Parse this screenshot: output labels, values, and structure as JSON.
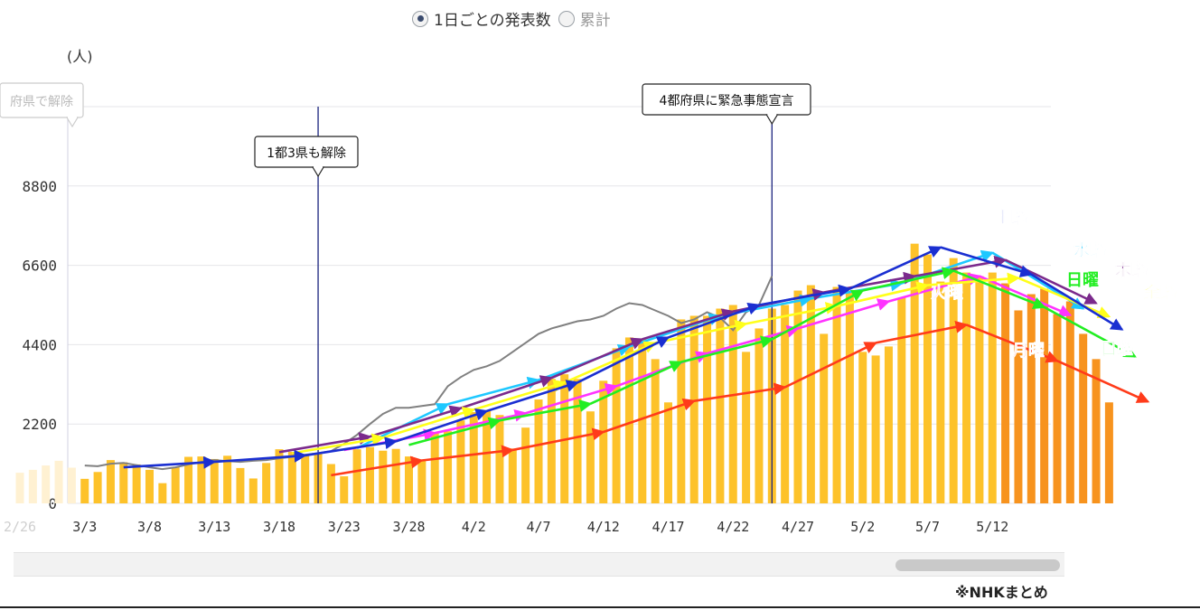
{
  "toggle": {
    "daily_label": "1日ごとの発表数",
    "cumulative_label": "累計",
    "selected": "daily"
  },
  "source_note": "※NHKまとめ",
  "colors": {
    "bar": "#fdc22a",
    "bar_recent": "#f7931e",
    "bar_faded": "#fff1d2",
    "gray_line": "#808080",
    "event_line": "#1a237e"
  },
  "chart_data": {
    "type": "bar",
    "unit_label": "(人)",
    "ylim": [
      0,
      11000
    ],
    "yticks": [
      0,
      2200,
      4400,
      6600,
      8800,
      11000
    ],
    "xtick_labels": [
      "2/26",
      "3/3",
      "3/8",
      "3/13",
      "3/18",
      "3/23",
      "3/28",
      "4/2",
      "4/7",
      "4/12",
      "4/17",
      "4/22",
      "4/27",
      "5/2",
      "5/7",
      "5/12"
    ],
    "start_date": "2/26",
    "values": [
      850,
      930,
      1050,
      1180,
      990,
      680,
      870,
      1200,
      1140,
      1080,
      930,
      560,
      1000,
      1290,
      1300,
      1230,
      1320,
      980,
      690,
      1120,
      1500,
      1430,
      1320,
      1390,
      1090,
      750,
      1500,
      1560,
      1460,
      1510,
      1300,
      1200,
      1950,
      2000,
      2300,
      2530,
      2570,
      2450,
      1520,
      2100,
      2880,
      3450,
      3580,
      3450,
      2550,
      3400,
      4300,
      4600,
      4570,
      4000,
      2800,
      5100,
      5200,
      5200,
      5400,
      5500,
      4200,
      4850,
      5400,
      5500,
      5900,
      6050,
      4700,
      6000,
      5900,
      4200,
      4100,
      4350,
      5700,
      7200,
      6900,
      6150,
      6800,
      6400,
      6300,
      6400,
      6100,
      5350,
      5800,
      5950,
      5250,
      5600,
      4700,
      4000,
      2800
    ],
    "highlight_from": "5/13",
    "trend_line": [
      1050,
      1030,
      1100,
      1120,
      1060,
      1000,
      950,
      1000,
      1080,
      1150,
      1200,
      1170,
      1150,
      1180,
      1200,
      1250,
      1290,
      1350,
      1390,
      1450,
      1650,
      1900,
      2200,
      2480,
      2650,
      2650,
      2700,
      2750,
      3250,
      3500,
      3700,
      3800,
      3950,
      4200,
      4450,
      4700,
      4850,
      4950,
      5050,
      5100,
      5200,
      5400,
      5550,
      5500,
      5350,
      5200,
      5000,
      5100,
      5300,
      5150,
      4800,
      5300,
      5500,
      6300
    ],
    "events": [
      {
        "label": "1都3県も解除",
        "date": "3/21"
      },
      {
        "label": "4都府県に緊急事態宣言",
        "date": "4/25"
      },
      {
        "label": "府県で解除",
        "date": "2/26"
      }
    ],
    "weekday_series": [
      {
        "name": "月曜",
        "color": "#ff3b1a",
        "points": [
          [
            "3/22",
            780
          ],
          [
            "3/29",
            1190
          ],
          [
            "4/5",
            1480
          ],
          [
            "4/12",
            1980
          ],
          [
            "4/19",
            2840
          ],
          [
            "4/26",
            3220
          ],
          [
            "5/3",
            4450
          ],
          [
            "5/10",
            4950
          ],
          [
            "5/17",
            3950
          ],
          [
            "5/24",
            2820
          ]
        ]
      },
      {
        "name": "火曜",
        "color": "#ff33ff",
        "points": [
          [
            "3/23",
            1480
          ],
          [
            "3/30",
            1950
          ],
          [
            "4/6",
            2500
          ],
          [
            "4/13",
            3250
          ],
          [
            "4/20",
            4160
          ],
          [
            "4/27",
            4850
          ],
          [
            "5/4",
            5600
          ],
          [
            "5/11",
            6300
          ],
          [
            "5/18",
            5220
          ]
        ]
      },
      {
        "name": "水曜",
        "color": "#1ec8ff",
        "points": [
          [
            "3/24",
            1530
          ],
          [
            "3/31",
            2750
          ],
          [
            "4/7",
            3420
          ],
          [
            "4/14",
            4350
          ],
          [
            "4/21",
            5200
          ],
          [
            "4/28",
            5680
          ],
          [
            "5/5",
            6100
          ],
          [
            "5/12",
            6950
          ],
          [
            "5/19",
            5400
          ]
        ]
      },
      {
        "name": "木曜",
        "color": "#7b2a8c",
        "points": [
          [
            "3/18",
            1420
          ],
          [
            "3/25",
            1850
          ],
          [
            "4/1",
            2640
          ],
          [
            "4/8",
            3480
          ],
          [
            "4/15",
            4550
          ],
          [
            "4/22",
            5320
          ],
          [
            "4/29",
            5850
          ],
          [
            "5/6",
            6300
          ],
          [
            "5/13",
            6750
          ],
          [
            "5/20",
            5550
          ]
        ]
      },
      {
        "name": "金曜",
        "color": "#ffff1a",
        "points": [
          [
            "3/19",
            1390
          ],
          [
            "3/26",
            1820
          ],
          [
            "4/2",
            2600
          ],
          [
            "4/9",
            3350
          ],
          [
            "4/16",
            4450
          ],
          [
            "4/23",
            4980
          ],
          [
            "4/30",
            5470
          ],
          [
            "5/7",
            6050
          ],
          [
            "5/14",
            6250
          ],
          [
            "5/21",
            5180
          ]
        ]
      },
      {
        "name": "土曜",
        "color": "#1a2fd1",
        "points": [
          [
            "3/6",
            1000
          ],
          [
            "3/13",
            1150
          ],
          [
            "3/20",
            1330
          ],
          [
            "3/27",
            1720
          ],
          [
            "4/3",
            2560
          ],
          [
            "4/10",
            3350
          ],
          [
            "4/17",
            4600
          ],
          [
            "4/24",
            5500
          ],
          [
            "5/1",
            5950
          ],
          [
            "5/8",
            7100
          ],
          [
            "5/15",
            6350
          ],
          [
            "5/22",
            4820
          ]
        ]
      },
      {
        "name": "日曜",
        "color": "#22ee22",
        "points": [
          [
            "3/28",
            1620
          ],
          [
            "4/4",
            2300
          ],
          [
            "4/11",
            2760
          ],
          [
            "4/18",
            3920
          ],
          [
            "4/25",
            4550
          ],
          [
            "5/2",
            5900
          ],
          [
            "5/9",
            6450
          ],
          [
            "5/16",
            5440
          ],
          [
            "5/23",
            4070
          ]
        ]
      }
    ],
    "extra_series_labels": [
      {
        "name": "日曜",
        "color": "#22ee22",
        "date": "5/18",
        "value": 5650
      }
    ]
  }
}
